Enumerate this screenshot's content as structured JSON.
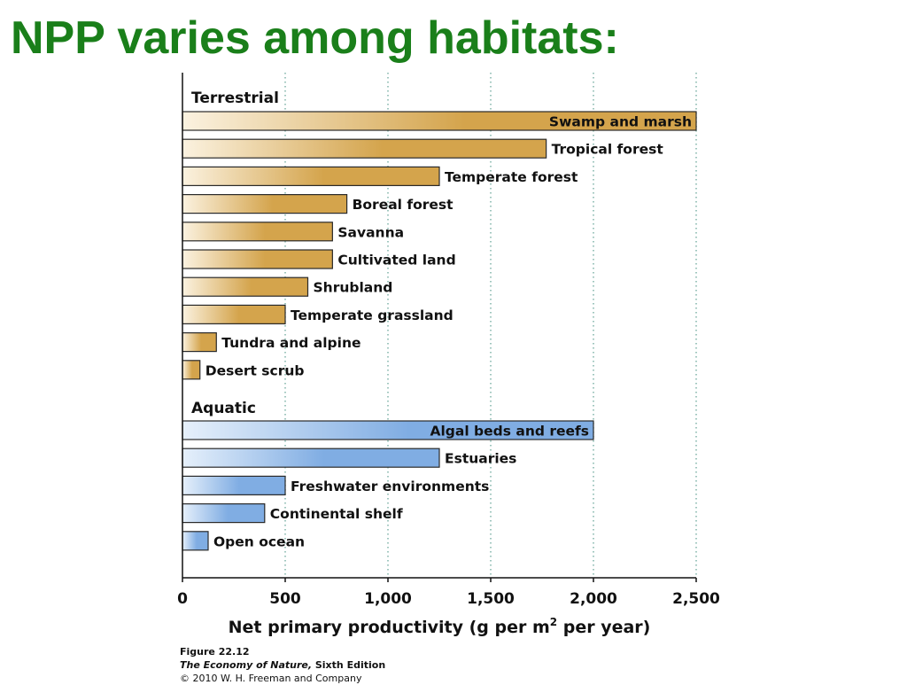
{
  "slide": {
    "title": "NPP varies among habitats:"
  },
  "chart_data": {
    "type": "bar",
    "orientation": "horizontal",
    "xlabel": "Net primary productivity (g per m",
    "xlabel_sup": "2",
    "xlabel_tail": " per year)",
    "xlim": [
      0,
      2500
    ],
    "x_ticks": [
      0,
      500,
      1000,
      1500,
      2000,
      2500
    ],
    "x_tick_labels": [
      "0",
      "500",
      "1,000",
      "1,500",
      "2,000",
      "2,500"
    ],
    "grid": "vertical dotted",
    "groups": [
      {
        "name": "Terrestrial",
        "color": "#d4a44c",
        "color_light": "#fbf2e0",
        "bars": [
          {
            "label": "Swamp and marsh",
            "value": 2500,
            "label_inside": true
          },
          {
            "label": "Tropical forest",
            "value": 1770
          },
          {
            "label": "Temperate forest",
            "value": 1250
          },
          {
            "label": "Boreal forest",
            "value": 800
          },
          {
            "label": "Savanna",
            "value": 730
          },
          {
            "label": "Cultivated land",
            "value": 730
          },
          {
            "label": "Shrubland",
            "value": 610
          },
          {
            "label": "Temperate grassland",
            "value": 500
          },
          {
            "label": "Tundra and alpine",
            "value": 165
          },
          {
            "label": "Desert scrub",
            "value": 85
          }
        ]
      },
      {
        "name": "Aquatic",
        "color": "#80ade3",
        "color_light": "#e6f0fb",
        "bars": [
          {
            "label": "Algal beds and reefs",
            "value": 2000,
            "label_inside": true
          },
          {
            "label": "Estuaries",
            "value": 1250
          },
          {
            "label": "Freshwater environments",
            "value": 500
          },
          {
            "label": "Continental shelf",
            "value": 400
          },
          {
            "label": "Open ocean",
            "value": 125
          }
        ]
      }
    ]
  },
  "caption": {
    "figure": "Figure 22.12",
    "book_title": "The Economy of Nature,",
    "edition": " Sixth Edition",
    "copyright": "© 2010 W. H. Freeman and Company"
  }
}
